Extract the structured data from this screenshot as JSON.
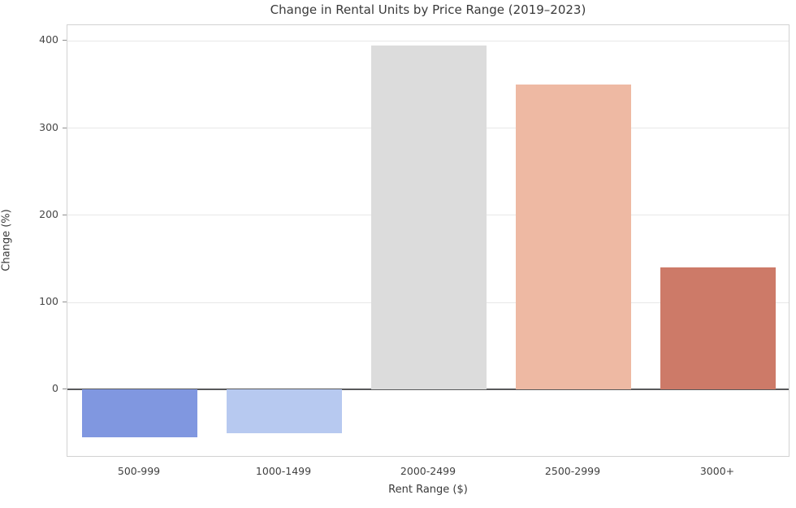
{
  "chart_data": {
    "type": "bar",
    "title": "Change in Rental Units by Price Range (2019–2023)",
    "xlabel": "Rent Range ($)",
    "ylabel": "Change (%)",
    "categories": [
      "500-999",
      "1000-1499",
      "2000-2499",
      "2500-2999",
      "3000+"
    ],
    "values": [
      -55,
      -50,
      395,
      350,
      140
    ],
    "bar_colors": [
      "#8097e0",
      "#b7c9f0",
      "#dcdcdc",
      "#eeb9a3",
      "#cd7a68"
    ],
    "yticks": [
      0,
      100,
      200,
      300,
      400
    ],
    "ylim": [
      -78,
      418
    ],
    "grid": "horizontal-only",
    "legend": "none",
    "zero_line_color": "#58595b",
    "background_color": "#ffffff",
    "bar_width_fraction": 0.8
  }
}
